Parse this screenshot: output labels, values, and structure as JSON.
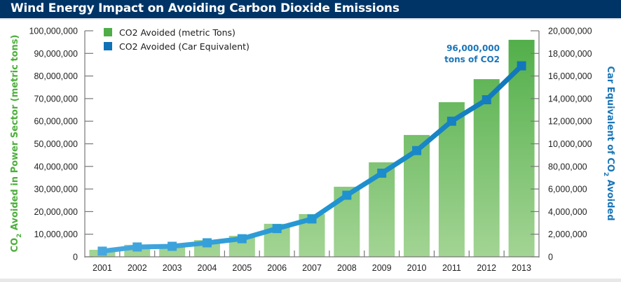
{
  "header": {
    "title": "Wind Energy Impact on Avoiding Carbon Dioxide Emissions"
  },
  "colors": {
    "title_bg": "#003466",
    "bar": "#4fad47",
    "bar_light": "#a3d494",
    "line": "#0f72b7",
    "line_light": "#4aa9e0",
    "left_axis_title": "#4caf3c",
    "right_axis_title": "#1a75b8"
  },
  "chart_data": {
    "type": "bar",
    "title": "Wind Energy Impact on Avoiding Carbon Dioxide Emissions",
    "categories": [
      "2001",
      "2002",
      "2003",
      "2004",
      "2005",
      "2006",
      "2007",
      "2008",
      "2009",
      "2010",
      "2011",
      "2012",
      "2013"
    ],
    "series": [
      {
        "name": "CO2 Avoided (metric Tons)",
        "type": "bar",
        "axis": "left",
        "values": [
          3100000,
          5300000,
          5600000,
          7400000,
          9300000,
          14600000,
          18900000,
          31000000,
          41800000,
          53900000,
          68400000,
          78600000,
          96000000
        ]
      },
      {
        "name": "CO2 Avoided (Car Equivalent)",
        "type": "line",
        "axis": "right",
        "values": [
          500000,
          870000,
          930000,
          1240000,
          1600000,
          2500000,
          3350000,
          5450000,
          7400000,
          9400000,
          12000000,
          13900000,
          16900000
        ]
      }
    ],
    "left_axis": {
      "label": "CO2 Avoided in Power Sector (metric tons)",
      "label_parts": [
        "CO",
        "2",
        " Avoided in Power Sector (metric tons)"
      ],
      "ylim": [
        0,
        100000000
      ],
      "ticks": [
        0,
        10000000,
        20000000,
        30000000,
        40000000,
        50000000,
        60000000,
        70000000,
        80000000,
        90000000,
        100000000
      ],
      "tick_labels": [
        "0",
        "10,000,000",
        "20,000,000",
        "30,000,000",
        "40,000,000",
        "50,000,000",
        "60,000,000",
        "70,000,000",
        "80,000,000",
        "90,000,000",
        "100,000,000"
      ]
    },
    "right_axis": {
      "label": "Car Equivalent of CO2 Avoided",
      "label_parts": [
        "Car Equivalent of CO",
        "2",
        " Avoided"
      ],
      "ylim": [
        0,
        20000000
      ],
      "ticks": [
        0,
        2000000,
        4000000,
        6000000,
        8000000,
        10000000,
        12000000,
        14000000,
        16000000,
        18000000,
        20000000
      ],
      "tick_labels": [
        "0",
        "2,000,000",
        "4,000,000",
        "6,000,000",
        "80,00,000",
        "10,000,000",
        "12,000,000",
        "14,000,000",
        "16,000,000",
        "18,000,000",
        "20,000,000"
      ]
    },
    "legend": {
      "placement": "top-left",
      "entries": [
        "CO2 Avoided (metric Tons)",
        "CO2 Avoided (Car Equivalent)"
      ]
    },
    "annotation": {
      "line1": "96,000,000",
      "line2": "tons of CO2",
      "target": "2013"
    },
    "grid": false
  }
}
